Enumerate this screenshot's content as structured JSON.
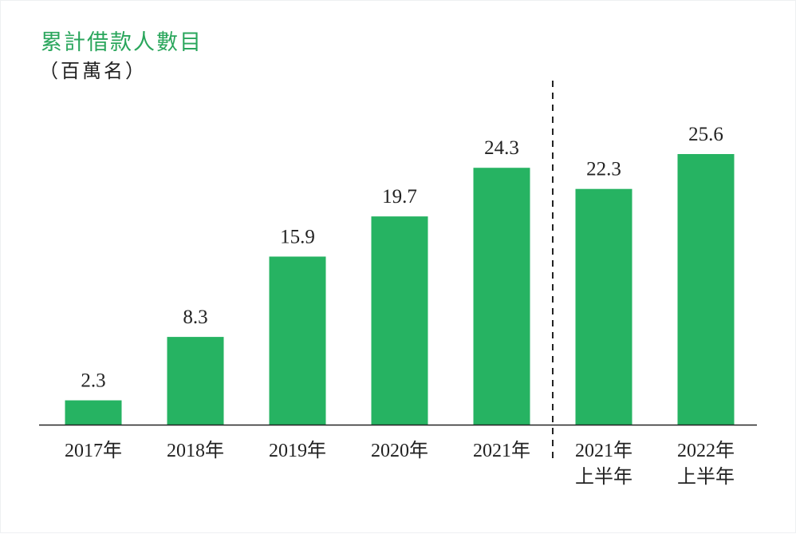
{
  "chart_data": {
    "type": "bar",
    "title": "累計借款人數目",
    "subtitle": "（百萬名）",
    "categories": [
      [
        "2017年"
      ],
      [
        "2018年"
      ],
      [
        "2019年"
      ],
      [
        "2020年"
      ],
      [
        "2021年"
      ],
      [
        "2021年",
        "上半年"
      ],
      [
        "2022年",
        "上半年"
      ]
    ],
    "values": [
      2.3,
      8.3,
      15.9,
      19.7,
      24.3,
      22.3,
      25.6
    ],
    "value_labels": [
      "2.3",
      "8.3",
      "15.9",
      "19.7",
      "24.3",
      "22.3",
      "25.6"
    ],
    "ylim": [
      0,
      25.6
    ],
    "grid": false,
    "separator_after_index": 4,
    "colors": {
      "bar": "#26b362",
      "title": "#2aa65c",
      "axis": "#222222"
    }
  }
}
